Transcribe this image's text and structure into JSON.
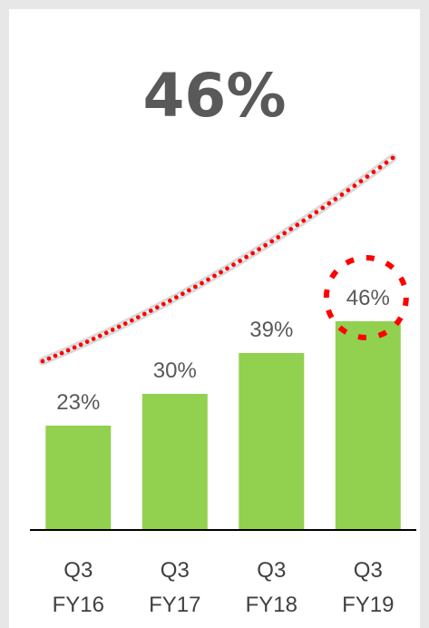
{
  "headline": "46%",
  "chart_data": {
    "type": "bar",
    "title": "",
    "xlabel": "",
    "ylabel": "",
    "categories": [
      [
        "Q3",
        "FY16"
      ],
      [
        "Q3",
        "FY17"
      ],
      [
        "Q3",
        "FY18"
      ],
      [
        "Q3",
        "FY19"
      ]
    ],
    "values": [
      23,
      30,
      39,
      46
    ],
    "data_labels": [
      "23%",
      "30%",
      "39%",
      "46%"
    ],
    "ylim": [
      0,
      50
    ],
    "grid": false,
    "legend": "none",
    "highlight_index": 3,
    "colors": {
      "bar": "#92d050",
      "label_text": "#595959",
      "axis_text": "#404040",
      "baseline": "#000000",
      "trend_line": "#d9d9d9",
      "trend_dots": "#ff0000",
      "highlight_circle": "#ff0000",
      "frame": "#e7e7e7"
    }
  }
}
